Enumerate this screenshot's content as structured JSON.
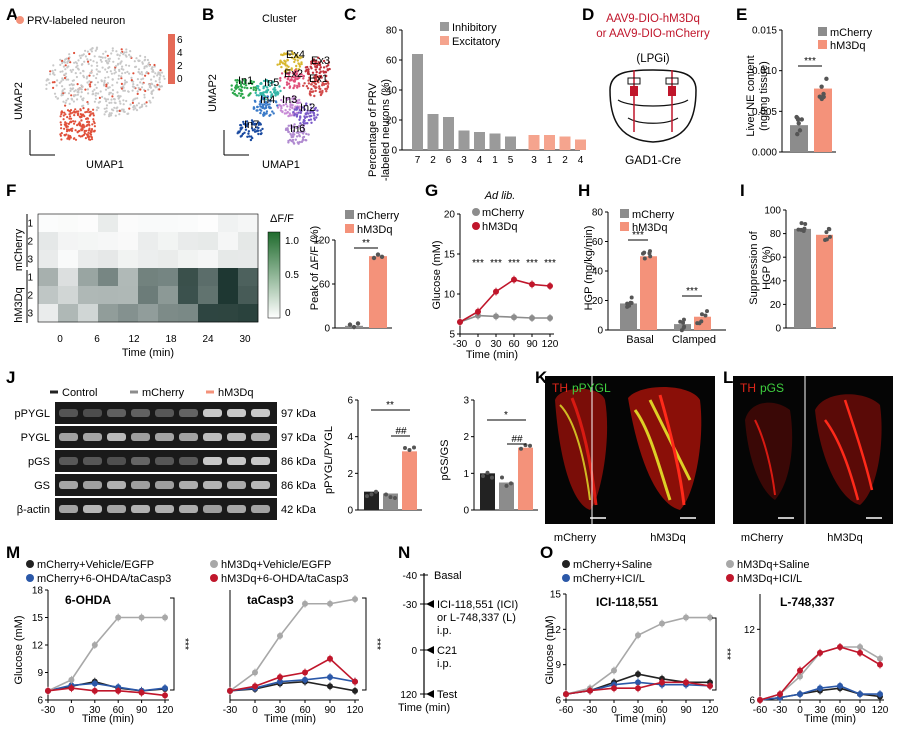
{
  "panel_letters": [
    "A",
    "B",
    "C",
    "D",
    "E",
    "F",
    "G",
    "H",
    "I",
    "J",
    "K",
    "L",
    "M",
    "N",
    "O"
  ],
  "colors": {
    "mcherry": "#8c8c8c",
    "hm3dq": "#f4927a",
    "hm3dq_dark": "#c0162b",
    "control": "#222222",
    "inhib": "#9a9a9a",
    "excit": "#f5a48e",
    "green": "#2e7a3c",
    "blue": "#2b58a8"
  },
  "A": {
    "legend": "PRV-labeled neuron",
    "xlabel": "UMAP1",
    "ylabel": "UMAP2",
    "scale": [
      "6",
      "4",
      "2",
      "0"
    ]
  },
  "B": {
    "title": "Cluster",
    "xlabel": "UMAP1",
    "ylabel": "UMAP2",
    "clusters": [
      "Ex4",
      "In1",
      "In5",
      "Ex2",
      "Ex3",
      "Ex1",
      "In4",
      "In3",
      "In2",
      "In7",
      "In6"
    ]
  },
  "chart_data": [
    {
      "panel": "C",
      "type": "bar",
      "ylabel": "Percentage of PRV -labeled neurons (%)",
      "ylim": [
        0,
        80
      ],
      "yticks": [
        "0",
        "20",
        "40",
        "60",
        "80"
      ],
      "series": [
        {
          "name": "Inhibitory",
          "categories": [
            "7",
            "2",
            "6",
            "3",
            "4",
            "1",
            "5"
          ],
          "values": [
            64,
            24,
            22,
            13,
            12,
            11,
            9
          ]
        },
        {
          "name": "Excitatory",
          "categories": [
            "3",
            "1",
            "2",
            "4"
          ],
          "values": [
            10,
            10,
            9,
            7
          ]
        }
      ]
    },
    {
      "panel": "E",
      "type": "bar",
      "ylabel": "Liver NE content (ng/mg tissue)",
      "ylim": [
        0,
        0.015
      ],
      "yticks": [
        "0.000",
        "0.005",
        "0.010",
        "0.015"
      ],
      "significance": "***",
      "series": [
        {
          "name": "mCherry",
          "value": 0.0033
        },
        {
          "name": "hM3Dq",
          "value": 0.0078
        }
      ]
    },
    {
      "panel": "F",
      "type": "heatmap",
      "xlabel": "Time (min)",
      "colorbar_label": "ΔF/F",
      "xticks": [
        "0",
        "6",
        "12",
        "18",
        "24",
        "30"
      ],
      "cbar_ticks": [
        "1.0",
        "0.5",
        "0"
      ],
      "groups": [
        "mCherry",
        "hM3Dq"
      ],
      "rows": [
        "1",
        "2",
        "3",
        "1",
        "2",
        "3"
      ]
    },
    {
      "panel": "F-bar",
      "type": "bar",
      "ylabel": "Peak of ΔF/F (%)",
      "ylim": [
        0,
        120
      ],
      "yticks": [
        "0",
        "60",
        "120"
      ],
      "significance": "**",
      "series": [
        {
          "name": "mCherry",
          "value": 3
        },
        {
          "name": "hM3Dq",
          "value": 98
        }
      ]
    },
    {
      "panel": "G",
      "type": "line",
      "title": "Ad lib.",
      "xlabel": "Time (min)",
      "ylabel": "Glucose (mM)",
      "xticks": [
        "-30",
        "0",
        "30",
        "60",
        "90",
        "120"
      ],
      "yticks": [
        "5",
        "10",
        "15",
        "20"
      ],
      "x": [
        -30,
        0,
        30,
        60,
        90,
        120
      ],
      "ylim": [
        5,
        20
      ],
      "series": [
        {
          "name": "mCherry",
          "values": [
            6.5,
            7.3,
            7.2,
            7.1,
            7.0,
            7.0
          ]
        },
        {
          "name": "hM3Dq",
          "values": [
            6.5,
            7.8,
            10.3,
            11.8,
            11.2,
            11.0
          ]
        }
      ],
      "stars": [
        "***",
        "***",
        "***",
        "***",
        "***"
      ]
    },
    {
      "panel": "H",
      "type": "bar",
      "ylabel": "HGP (mg/kg/min)",
      "ylim": [
        0,
        80
      ],
      "yticks": [
        "0",
        "20",
        "40",
        "60",
        "80"
      ],
      "categories": [
        "Basal",
        "Clamped"
      ],
      "series": [
        {
          "name": "mCherry",
          "values": [
            18,
            4
          ]
        },
        {
          "name": "hM3Dq",
          "values": [
            50,
            9
          ]
        }
      ],
      "stars": [
        "***",
        "***"
      ]
    },
    {
      "panel": "I",
      "type": "bar",
      "ylabel": "Suppression of HGP (%)",
      "ylim": [
        0,
        100
      ],
      "yticks": [
        "0",
        "20",
        "40",
        "60",
        "80",
        "100"
      ],
      "series": [
        {
          "name": "mCherry",
          "value": 84
        },
        {
          "name": "hM3Dq",
          "value": 79
        }
      ]
    },
    {
      "panel": "J1",
      "type": "bar",
      "ylabel": "pPYGL/PYGL",
      "ylim": [
        0,
        6
      ],
      "yticks": [
        "0",
        "2",
        "4",
        "6"
      ],
      "series": [
        {
          "name": "Control",
          "value": 1.0
        },
        {
          "name": "mCherry",
          "value": 0.9
        },
        {
          "name": "hM3Dq",
          "value": 3.2
        }
      ],
      "sig": [
        "**",
        "##"
      ]
    },
    {
      "panel": "J2",
      "type": "bar",
      "ylabel": "pGS/GS",
      "ylim": [
        0,
        3
      ],
      "yticks": [
        "0",
        "1",
        "2",
        "3"
      ],
      "series": [
        {
          "name": "Control",
          "value": 1.0
        },
        {
          "name": "mCherry",
          "value": 0.75
        },
        {
          "name": "hM3Dq",
          "value": 1.7
        }
      ],
      "sig": [
        "*",
        "##"
      ]
    },
    {
      "panel": "M1",
      "type": "line",
      "title": "6-OHDA",
      "xlabel": "Time (min)",
      "ylabel": "Glucose (mM)",
      "xticks": [
        "-30",
        "0",
        "30",
        "60",
        "90",
        "120"
      ],
      "yticks": [
        "6",
        "9",
        "12",
        "15",
        "18"
      ],
      "x": [
        -30,
        0,
        30,
        60,
        90,
        120
      ],
      "ylim": [
        6,
        18
      ],
      "significance": "***",
      "series": [
        {
          "name": "mCherry+Vehicle/EGFP",
          "values": [
            7.0,
            7.5,
            8.0,
            7.3,
            7.0,
            7.2
          ]
        },
        {
          "name": "mCherry+6-OHDA/taCasp3",
          "values": [
            7.0,
            7.6,
            7.8,
            7.4,
            7.0,
            7.3
          ]
        },
        {
          "name": "hM3Dq+Vehicle/EGFP",
          "values": [
            7.0,
            8.2,
            12.0,
            15.0,
            15.0,
            15.0
          ]
        },
        {
          "name": "hM3Dq+6-OHDA/taCasp3",
          "values": [
            7.0,
            7.3,
            7.0,
            7.0,
            6.8,
            6.5
          ]
        }
      ]
    },
    {
      "panel": "M2",
      "type": "line",
      "title": "taCasp3",
      "xlabel": "Time (min)",
      "xticks": [
        "-30",
        "0",
        "30",
        "60",
        "90",
        "120"
      ],
      "x": [
        -30,
        0,
        30,
        60,
        90,
        120
      ],
      "ylim": [
        6,
        18
      ],
      "significance": "***",
      "series": [
        {
          "name": "mCherry+Vehicle/EGFP",
          "values": [
            7.0,
            7.2,
            7.8,
            8.0,
            7.5,
            7.0
          ]
        },
        {
          "name": "mCherry+6-OHDA/taCasp3",
          "values": [
            7.0,
            7.3,
            8.0,
            8.2,
            8.5,
            8.0
          ]
        },
        {
          "name": "hM3Dq+Vehicle/EGFP",
          "values": [
            7.0,
            9.0,
            13.0,
            16.5,
            16.5,
            17.0
          ]
        },
        {
          "name": "hM3Dq+6-OHDA/taCasp3",
          "values": [
            7.0,
            7.5,
            8.5,
            9.0,
            10.5,
            8.0
          ]
        }
      ]
    },
    {
      "panel": "O1",
      "type": "line",
      "title": "ICI-118,551",
      "xlabel": "Time (min)",
      "ylabel": "Glucose (mM)",
      "xticks": [
        "-60",
        "-30",
        "0",
        "30",
        "60",
        "90",
        "120"
      ],
      "yticks": [
        "6",
        "9",
        "12",
        "15"
      ],
      "x": [
        -60,
        -30,
        0,
        30,
        60,
        90,
        120
      ],
      "ylim": [
        6,
        15
      ],
      "significance": "***",
      "series": [
        {
          "name": "mCherry+Saline",
          "values": [
            6.5,
            6.8,
            7.5,
            8.2,
            7.8,
            7.5,
            7.5
          ]
        },
        {
          "name": "mCherry+ICI/L",
          "values": [
            6.5,
            6.8,
            7.3,
            7.5,
            7.3,
            7.3,
            7.2
          ]
        },
        {
          "name": "hM3Dq+Saline",
          "values": [
            6.5,
            7.0,
            8.5,
            11.5,
            12.5,
            13.0,
            13.0
          ]
        },
        {
          "name": "hM3Dq+ICI/L",
          "values": [
            6.5,
            6.8,
            7.0,
            7.0,
            7.5,
            7.5,
            7.2
          ]
        }
      ]
    },
    {
      "panel": "O2",
      "type": "line",
      "title": "L-748,337",
      "xlabel": "Time (min)",
      "xticks": [
        "-60",
        "-30",
        "0",
        "30",
        "60",
        "90",
        "120"
      ],
      "yticks": [
        "6",
        "12"
      ],
      "x": [
        -60,
        -30,
        0,
        30,
        60,
        90,
        120
      ],
      "ylim": [
        6,
        15
      ],
      "series": [
        {
          "name": "mCherry+Saline",
          "values": [
            6.0,
            6.2,
            6.5,
            6.8,
            7.0,
            6.5,
            6.3
          ]
        },
        {
          "name": "mCherry+ICI/L",
          "values": [
            6.0,
            6.2,
            6.5,
            7.0,
            7.2,
            6.5,
            6.5
          ]
        },
        {
          "name": "hM3Dq+Saline",
          "values": [
            6.0,
            6.5,
            8.0,
            10.0,
            10.5,
            10.5,
            9.5
          ]
        },
        {
          "name": "hM3Dq+ICI/L",
          "values": [
            6.0,
            6.5,
            8.5,
            10.0,
            10.5,
            10.0,
            9.0
          ]
        }
      ]
    }
  ],
  "C": {
    "legend": [
      "Inhibitory",
      "Excitatory"
    ]
  },
  "D": {
    "line1": "AAV9-DIO-hM3Dq",
    "line2": "or AAV9-DIO-mCherry",
    "line3": "(LPGi)",
    "label": "GAD1-Cre"
  },
  "E": {
    "legend": [
      "mCherry",
      "hM3Dq"
    ]
  },
  "F": {
    "legend": [
      "mCherry",
      "hM3Dq"
    ]
  },
  "G": {
    "legend": [
      "mCherry",
      "hM3Dq"
    ]
  },
  "H": {
    "legend": [
      "mCherry",
      "hM3Dq"
    ]
  },
  "J": {
    "legend": [
      "Control",
      "mCherry",
      "hM3Dq"
    ],
    "blots": [
      {
        "name": "pPYGL",
        "kda": "97 kDa"
      },
      {
        "name": "PYGL",
        "kda": "97 kDa"
      },
      {
        "name": "pGS",
        "kda": "86 kDa"
      },
      {
        "name": "GS",
        "kda": "86 kDa"
      },
      {
        "name": "β-actin",
        "kda": "42 kDa"
      }
    ]
  },
  "K": {
    "label_a": "TH",
    "label_b": "pPYGL",
    "left": "mCherry",
    "right": "hM3Dq"
  },
  "L": {
    "label_a": "TH",
    "label_b": "pGS",
    "left": "mCherry",
    "right": "hM3Dq"
  },
  "M": {
    "legend": [
      "mCherry+Vehicle/EGFP",
      "hM3Dq+Vehicle/EGFP",
      "mCherry+6-OHDA/taCasp3",
      "hM3Dq+6-OHDA/taCasp3"
    ]
  },
  "N": {
    "xlabel": "Time (min)",
    "ticks": [
      "-40",
      "-30",
      "0",
      "120"
    ],
    "events": [
      "Basal",
      "ICI-118,551 (ICI)",
      "or L-748,337 (L)",
      "i.p.",
      "C21",
      "i.p.",
      "Test"
    ]
  },
  "O": {
    "legend": [
      "mCherry+Saline",
      "hM3Dq+Saline",
      "mCherry+ICI/L",
      "hM3Dq+ICI/L"
    ]
  }
}
